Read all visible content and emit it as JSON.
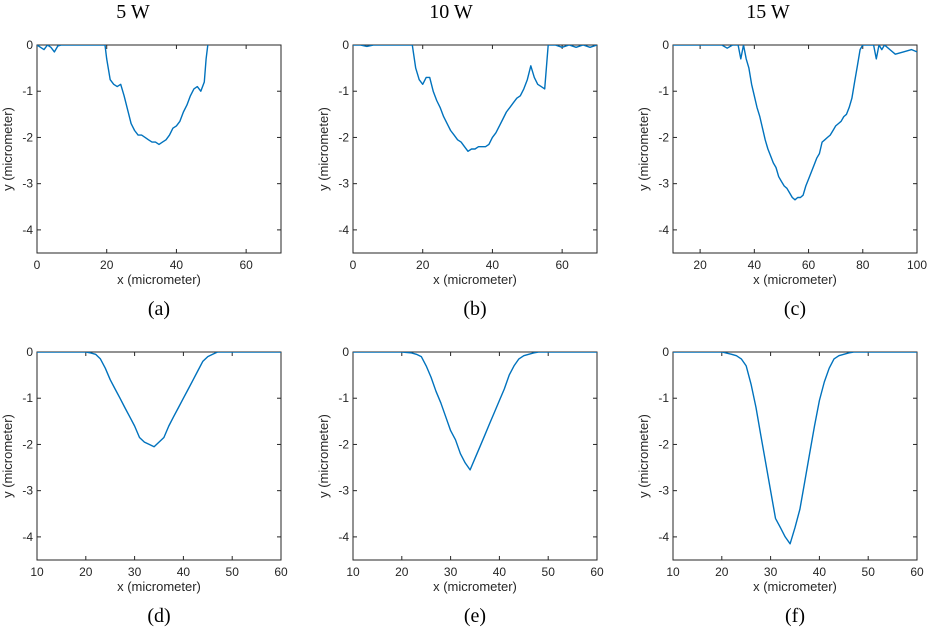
{
  "column_titles": [
    "5 W",
    "10 W",
    "15 W"
  ],
  "colors": {
    "series": "#0072BD",
    "axis": "#262626"
  },
  "chart_data": [
    {
      "type": "line",
      "panel_label": "(a)",
      "xlabel": "x (micrometer)",
      "ylabel": "y (micrometer)",
      "xlim": [
        0,
        70
      ],
      "ylim": [
        -4.5,
        0
      ],
      "xticks": [
        0,
        20,
        40,
        60
      ],
      "yticks": [
        0,
        -1,
        -2,
        -3,
        -4
      ],
      "grid": false,
      "series": [
        {
          "x": [
            0,
            1,
            2,
            3,
            4,
            5,
            6,
            7,
            8,
            19.5,
            20,
            21,
            22,
            23,
            24,
            25,
            26,
            27,
            28,
            29,
            30,
            31,
            32,
            33,
            34,
            35,
            36,
            37,
            38,
            39,
            40,
            41,
            42,
            43,
            44,
            45,
            46,
            47,
            48,
            48.5,
            49
          ],
          "y": [
            0,
            -0.05,
            -0.1,
            0,
            -0.05,
            -0.15,
            -0.02,
            0,
            0,
            0,
            -0.3,
            -0.75,
            -0.85,
            -0.9,
            -0.85,
            -1.1,
            -1.4,
            -1.7,
            -1.85,
            -1.95,
            -1.95,
            -2.0,
            -2.05,
            -2.1,
            -2.1,
            -2.15,
            -2.1,
            -2.05,
            -1.95,
            -1.8,
            -1.75,
            -1.65,
            -1.45,
            -1.3,
            -1.1,
            -0.95,
            -0.9,
            -1.0,
            -0.8,
            -0.3,
            0
          ]
        }
      ]
    },
    {
      "type": "line",
      "panel_label": "(b)",
      "xlabel": "x (micrometer)",
      "ylabel": "y (micrometer)",
      "xlim": [
        0,
        70
      ],
      "ylim": [
        -4.5,
        0
      ],
      "xticks": [
        0,
        20,
        40,
        60
      ],
      "yticks": [
        0,
        -1,
        -2,
        -3,
        -4
      ],
      "grid": false,
      "series": [
        {
          "x": [
            0,
            2,
            4,
            6,
            8,
            10,
            12,
            14,
            16,
            17,
            18,
            19,
            20,
            21,
            22,
            23,
            24,
            25,
            26,
            27,
            28,
            29,
            30,
            31,
            32,
            33,
            34,
            35,
            36,
            37,
            38,
            39,
            40,
            41,
            42,
            43,
            44,
            45,
            46,
            47,
            48,
            49,
            50,
            51,
            52,
            53,
            54,
            55,
            56,
            58,
            60,
            62,
            64,
            66,
            68,
            70
          ],
          "y": [
            0,
            0,
            -0.03,
            0,
            0,
            0,
            0,
            0,
            0,
            0,
            -0.5,
            -0.75,
            -0.85,
            -0.7,
            -0.7,
            -1.0,
            -1.2,
            -1.35,
            -1.55,
            -1.7,
            -1.85,
            -1.95,
            -2.05,
            -2.1,
            -2.2,
            -2.3,
            -2.25,
            -2.25,
            -2.2,
            -2.2,
            -2.2,
            -2.15,
            -2.0,
            -1.9,
            -1.75,
            -1.6,
            -1.45,
            -1.35,
            -1.25,
            -1.15,
            -1.1,
            -0.95,
            -0.75,
            -0.45,
            -0.7,
            -0.85,
            -0.9,
            -0.95,
            0,
            0,
            -0.05,
            0,
            -0.05,
            0,
            -0.05,
            0
          ]
        }
      ]
    },
    {
      "type": "line",
      "panel_label": "(c)",
      "xlabel": "x (micrometer)",
      "ylabel": "y (micrometer)",
      "xlim": [
        10,
        100
      ],
      "ylim": [
        -4.5,
        0
      ],
      "xticks": [
        20,
        40,
        60,
        80,
        100
      ],
      "yticks": [
        0,
        -1,
        -2,
        -3,
        -4
      ],
      "grid": false,
      "series": [
        {
          "x": [
            10,
            15,
            20,
            25,
            28,
            30,
            32,
            34,
            35,
            36,
            37,
            38,
            39,
            40,
            41,
            42,
            43,
            44,
            45,
            46,
            47,
            48,
            49,
            50,
            51,
            52,
            53,
            54,
            55,
            56,
            57,
            58,
            59,
            60,
            61,
            62,
            63,
            64,
            65,
            66,
            67,
            68,
            69,
            70,
            71,
            72,
            73,
            74,
            75,
            76,
            77,
            78,
            79,
            80,
            82,
            84,
            85,
            86,
            87,
            88,
            90,
            92,
            95,
            98,
            100
          ],
          "y": [
            0,
            0,
            0,
            0,
            0,
            -0.07,
            0,
            0,
            -0.3,
            0,
            -0.3,
            -0.5,
            -0.85,
            -1.1,
            -1.35,
            -1.55,
            -1.8,
            -2.05,
            -2.25,
            -2.4,
            -2.55,
            -2.65,
            -2.85,
            -2.95,
            -3.05,
            -3.1,
            -3.2,
            -3.3,
            -3.35,
            -3.3,
            -3.3,
            -3.25,
            -3.05,
            -2.9,
            -2.75,
            -2.6,
            -2.45,
            -2.35,
            -2.1,
            -2.05,
            -2.0,
            -1.95,
            -1.85,
            -1.75,
            -1.7,
            -1.65,
            -1.55,
            -1.5,
            -1.35,
            -1.15,
            -0.8,
            -0.45,
            -0.1,
            0,
            0,
            0,
            -0.3,
            0,
            -0.1,
            0,
            -0.1,
            -0.2,
            -0.15,
            -0.1,
            -0.15
          ]
        }
      ]
    },
    {
      "type": "line",
      "panel_label": "(d)",
      "xlabel": "x (micrometer)",
      "ylabel": "y (micrometer)",
      "xlim": [
        10,
        60
      ],
      "ylim": [
        -4.5,
        0
      ],
      "xticks": [
        10,
        20,
        30,
        40,
        50,
        60
      ],
      "yticks": [
        0,
        -1,
        -2,
        -3,
        -4
      ],
      "grid": false,
      "series": [
        {
          "x": [
            10,
            14,
            18,
            20,
            21,
            22,
            23,
            24,
            25,
            26,
            27,
            28,
            29,
            30,
            31,
            32,
            33,
            34,
            35,
            36,
            37,
            38,
            39,
            40,
            41,
            42,
            43,
            44,
            45,
            46,
            47,
            48,
            50,
            54,
            60
          ],
          "y": [
            0,
            0,
            0,
            0,
            -0.02,
            -0.05,
            -0.15,
            -0.35,
            -0.6,
            -0.8,
            -1.0,
            -1.2,
            -1.4,
            -1.6,
            -1.85,
            -1.95,
            -2.0,
            -2.05,
            -1.95,
            -1.85,
            -1.6,
            -1.4,
            -1.2,
            -1.0,
            -0.8,
            -0.6,
            -0.4,
            -0.2,
            -0.1,
            -0.05,
            0,
            0,
            0,
            0,
            0
          ]
        }
      ]
    },
    {
      "type": "line",
      "panel_label": "(e)",
      "xlabel": "x (micrometer)",
      "ylabel": "y (micrometer)",
      "xlim": [
        10,
        60
      ],
      "ylim": [
        -4.5,
        0
      ],
      "xticks": [
        10,
        20,
        30,
        40,
        50,
        60
      ],
      "yticks": [
        0,
        -1,
        -2,
        -3,
        -4
      ],
      "grid": false,
      "series": [
        {
          "x": [
            10,
            15,
            20,
            22,
            23,
            24,
            25,
            26,
            27,
            28,
            29,
            30,
            31,
            32,
            33,
            34,
            35,
            36,
            37,
            38,
            39,
            40,
            41,
            42,
            43,
            44,
            45,
            46,
            47,
            48,
            50,
            55,
            60
          ],
          "y": [
            0,
            0,
            0,
            -0.02,
            -0.05,
            -0.1,
            -0.3,
            -0.55,
            -0.85,
            -1.1,
            -1.4,
            -1.7,
            -1.9,
            -2.2,
            -2.4,
            -2.55,
            -2.3,
            -2.05,
            -1.8,
            -1.55,
            -1.3,
            -1.05,
            -0.8,
            -0.5,
            -0.3,
            -0.15,
            -0.08,
            -0.05,
            -0.02,
            0,
            0,
            0,
            0
          ]
        }
      ]
    },
    {
      "type": "line",
      "panel_label": "(f)",
      "xlabel": "x (micrometer)",
      "ylabel": "y (micrometer)",
      "xlim": [
        10,
        60
      ],
      "ylim": [
        -4.5,
        0
      ],
      "xticks": [
        10,
        20,
        30,
        40,
        50,
        60
      ],
      "yticks": [
        0,
        -1,
        -2,
        -3,
        -4
      ],
      "grid": false,
      "series": [
        {
          "x": [
            10,
            15,
            20,
            22,
            23,
            24,
            25,
            26,
            27,
            28,
            29,
            30,
            31,
            32,
            33,
            34,
            35,
            36,
            37,
            38,
            39,
            40,
            41,
            42,
            43,
            44,
            45,
            46,
            47,
            48,
            50,
            55,
            60
          ],
          "y": [
            0,
            0,
            0,
            -0.05,
            -0.08,
            -0.15,
            -0.3,
            -0.7,
            -1.2,
            -1.8,
            -2.4,
            -3.0,
            -3.6,
            -3.8,
            -4.0,
            -4.15,
            -3.8,
            -3.4,
            -2.8,
            -2.2,
            -1.6,
            -1.05,
            -0.65,
            -0.35,
            -0.15,
            -0.08,
            -0.05,
            -0.02,
            0,
            0,
            0,
            0,
            0
          ]
        }
      ]
    }
  ]
}
